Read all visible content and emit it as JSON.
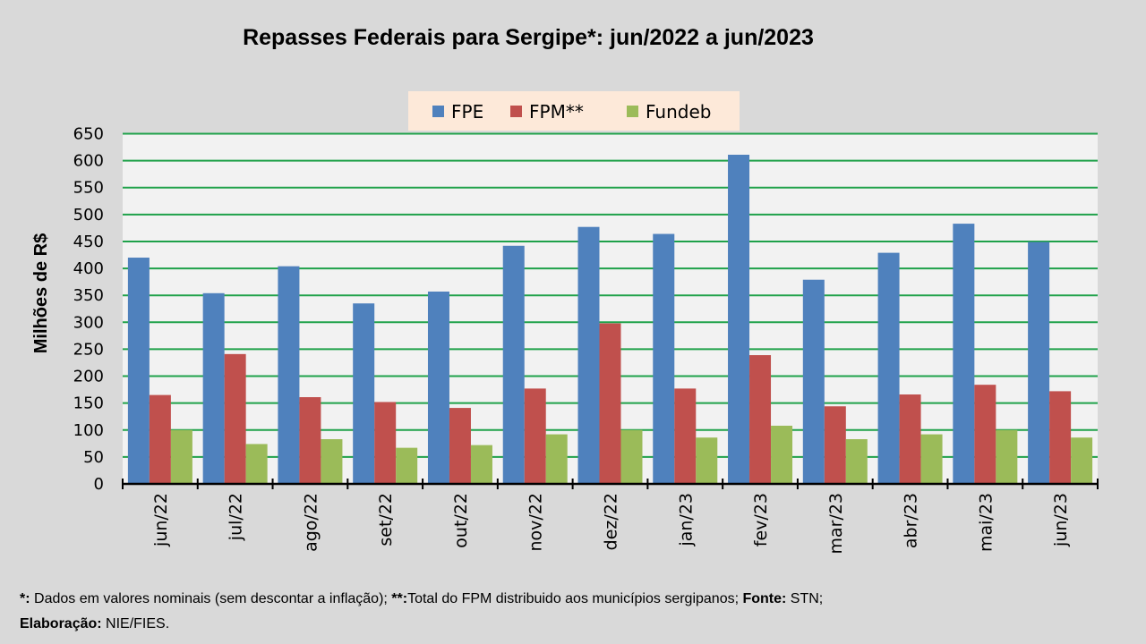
{
  "chart_data": {
    "type": "bar",
    "title": "Repasses Federais para Sergipe*: jun/2022 a jun/2023",
    "xlabel": "",
    "ylabel": "Milhões de R$",
    "ylim": [
      0,
      650
    ],
    "yticks": [
      0,
      50,
      100,
      150,
      200,
      250,
      300,
      350,
      400,
      450,
      500,
      550,
      600,
      650
    ],
    "grid": true,
    "legend_position": "top-center",
    "categories": [
      "jun/22",
      "jul/22",
      "ago/22",
      "set/22",
      "out/22",
      "nov/22",
      "dez/22",
      "jan/23",
      "fev/23",
      "mar/23",
      "abr/23",
      "mai/23",
      "jun/23"
    ],
    "series": [
      {
        "name": "FPE",
        "color": "#4f81bd",
        "values": [
          420,
          354,
          404,
          335,
          357,
          442,
          477,
          464,
          611,
          379,
          429,
          483,
          449
        ]
      },
      {
        "name": "FPM**",
        "color": "#c0504d",
        "values": [
          165,
          241,
          161,
          152,
          141,
          177,
          298,
          177,
          239,
          144,
          166,
          184,
          172
        ]
      },
      {
        "name": "Fundeb",
        "color": "#9bbb59",
        "values": [
          100,
          74,
          83,
          67,
          72,
          92,
          100,
          86,
          108,
          83,
          92,
          100,
          86
        ]
      }
    ],
    "colors": {
      "gridline": "#1fa14a",
      "plot_background": "#f2f2f2",
      "legend_background": "#fde9d9",
      "page_background": "#d9d9d9"
    }
  },
  "footnote": {
    "line1_parts": [
      {
        "bold": true,
        "text": "*:"
      },
      {
        "bold": false,
        "text": " Dados em valores nominais (sem descontar a inflação); "
      },
      {
        "bold": true,
        "text": "**:"
      },
      {
        "bold": false,
        "text": "Total  do FPM distribuido aos municípios sergipanos; "
      },
      {
        "bold": true,
        "text": "Fonte:"
      },
      {
        "bold": false,
        "text": " STN;"
      }
    ],
    "line2_parts": [
      {
        "bold": true,
        "text": "Elaboração:"
      },
      {
        "bold": false,
        "text": " NIE/FIES."
      }
    ]
  }
}
